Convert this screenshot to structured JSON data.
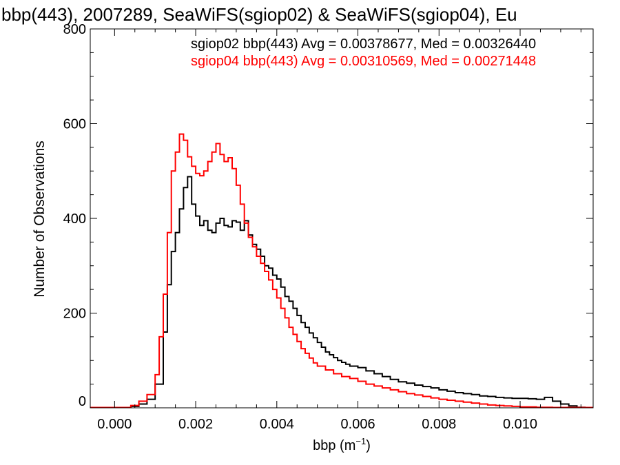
{
  "chart_data": {
    "type": "line",
    "title": "bbp(443), 2007289, SeaWiFS(sgiop02) & SeaWiFS(sgiop04), Eu",
    "xlabel": "bbp (m",
    "xlabel_sup": "−1",
    "xlabel_close": ")",
    "ylabel": "Number of Observations",
    "xlim": [
      -0.0006,
      0.0118
    ],
    "ylim": [
      0,
      800
    ],
    "x_ticks": [
      "0.000",
      "0.002",
      "0.004",
      "0.006",
      "0.008",
      "0.010"
    ],
    "x_tick_values": [
      0.0,
      0.002,
      0.004,
      0.006,
      0.008,
      0.01
    ],
    "y_ticks": [
      "0",
      "200",
      "400",
      "600",
      "800"
    ],
    "y_tick_values": [
      0,
      200,
      400,
      600,
      800
    ],
    "grid": false,
    "legend": [
      {
        "text": "sgiop02 bbp(443) Avg = 0.00378677, Med = 0.00326440",
        "color": "#000000"
      },
      {
        "text": "sgiop04 bbp(443) Avg = 0.00310569, Med = 0.00271448",
        "color": "#ff0000"
      }
    ],
    "series": [
      {
        "color": "#000000",
        "points": [
          [
            -0.0006,
            0
          ],
          [
            0.0,
            0
          ],
          [
            0.0004,
            3
          ],
          [
            0.0006,
            8
          ],
          [
            0.0008,
            18
          ],
          [
            0.001,
            50
          ],
          [
            0.0012,
            160
          ],
          [
            0.0013,
            260
          ],
          [
            0.0014,
            330
          ],
          [
            0.0015,
            370
          ],
          [
            0.0016,
            420
          ],
          [
            0.0017,
            465
          ],
          [
            0.0018,
            488
          ],
          [
            0.0019,
            430
          ],
          [
            0.002,
            405
          ],
          [
            0.0021,
            385
          ],
          [
            0.0022,
            395
          ],
          [
            0.0023,
            375
          ],
          [
            0.0024,
            370
          ],
          [
            0.0025,
            390
          ],
          [
            0.0026,
            400
          ],
          [
            0.0027,
            385
          ],
          [
            0.0028,
            382
          ],
          [
            0.0029,
            395
          ],
          [
            0.003,
            392
          ],
          [
            0.0031,
            375
          ],
          [
            0.0032,
            395
          ],
          [
            0.0033,
            365
          ],
          [
            0.0034,
            345
          ],
          [
            0.0035,
            335
          ],
          [
            0.0036,
            320
          ],
          [
            0.0037,
            300
          ],
          [
            0.0038,
            295
          ],
          [
            0.0039,
            280
          ],
          [
            0.004,
            272
          ],
          [
            0.0041,
            255
          ],
          [
            0.0042,
            235
          ],
          [
            0.0043,
            225
          ],
          [
            0.0044,
            210
          ],
          [
            0.0045,
            195
          ],
          [
            0.0046,
            180
          ],
          [
            0.0047,
            170
          ],
          [
            0.0048,
            158
          ],
          [
            0.0049,
            148
          ],
          [
            0.005,
            138
          ],
          [
            0.0051,
            128
          ],
          [
            0.0052,
            118
          ],
          [
            0.0053,
            112
          ],
          [
            0.0054,
            106
          ],
          [
            0.0055,
            100
          ],
          [
            0.0056,
            96
          ],
          [
            0.0057,
            92
          ],
          [
            0.0058,
            88
          ],
          [
            0.006,
            85
          ],
          [
            0.0062,
            78
          ],
          [
            0.0064,
            72
          ],
          [
            0.0066,
            66
          ],
          [
            0.0068,
            60
          ],
          [
            0.007,
            55
          ],
          [
            0.0072,
            52
          ],
          [
            0.0074,
            48
          ],
          [
            0.0076,
            45
          ],
          [
            0.0078,
            42
          ],
          [
            0.008,
            38
          ],
          [
            0.0082,
            35
          ],
          [
            0.0084,
            32
          ],
          [
            0.0086,
            30
          ],
          [
            0.0088,
            28
          ],
          [
            0.009,
            25
          ],
          [
            0.0092,
            24
          ],
          [
            0.0094,
            22
          ],
          [
            0.0096,
            21
          ],
          [
            0.0098,
            20
          ],
          [
            0.01,
            20
          ],
          [
            0.0102,
            19
          ],
          [
            0.0104,
            18
          ],
          [
            0.0106,
            22
          ],
          [
            0.0108,
            14
          ],
          [
            0.011,
            8
          ],
          [
            0.0112,
            4
          ],
          [
            0.0114,
            1
          ],
          [
            0.0116,
            0
          ],
          [
            0.0118,
            0
          ]
        ]
      },
      {
        "color": "#ff0000",
        "points": [
          [
            -0.0006,
            0
          ],
          [
            0.0,
            0
          ],
          [
            0.0004,
            5
          ],
          [
            0.0006,
            14
          ],
          [
            0.0008,
            28
          ],
          [
            0.001,
            70
          ],
          [
            0.0011,
            150
          ],
          [
            0.0012,
            240
          ],
          [
            0.0013,
            370
          ],
          [
            0.0014,
            500
          ],
          [
            0.0015,
            540
          ],
          [
            0.0016,
            578
          ],
          [
            0.0017,
            565
          ],
          [
            0.0018,
            530
          ],
          [
            0.0019,
            510
          ],
          [
            0.002,
            495
          ],
          [
            0.0021,
            490
          ],
          [
            0.0022,
            500
          ],
          [
            0.0023,
            520
          ],
          [
            0.0024,
            540
          ],
          [
            0.0025,
            558
          ],
          [
            0.0026,
            535
          ],
          [
            0.0027,
            520
          ],
          [
            0.0028,
            528
          ],
          [
            0.0029,
            505
          ],
          [
            0.003,
            470
          ],
          [
            0.0031,
            430
          ],
          [
            0.0032,
            390
          ],
          [
            0.0033,
            360
          ],
          [
            0.0034,
            340
          ],
          [
            0.0035,
            320
          ],
          [
            0.0036,
            305
          ],
          [
            0.0037,
            288
          ],
          [
            0.0038,
            270
          ],
          [
            0.0039,
            250
          ],
          [
            0.004,
            232
          ],
          [
            0.0041,
            210
          ],
          [
            0.0042,
            190
          ],
          [
            0.0043,
            170
          ],
          [
            0.0044,
            155
          ],
          [
            0.0045,
            140
          ],
          [
            0.0046,
            125
          ],
          [
            0.0047,
            115
          ],
          [
            0.0048,
            105
          ],
          [
            0.0049,
            95
          ],
          [
            0.005,
            88
          ],
          [
            0.0052,
            80
          ],
          [
            0.0054,
            72
          ],
          [
            0.0056,
            66
          ],
          [
            0.0058,
            62
          ],
          [
            0.006,
            56
          ],
          [
            0.0062,
            50
          ],
          [
            0.0064,
            46
          ],
          [
            0.0066,
            42
          ],
          [
            0.0068,
            38
          ],
          [
            0.007,
            34
          ],
          [
            0.0072,
            30
          ],
          [
            0.0074,
            27
          ],
          [
            0.0076,
            24
          ],
          [
            0.0078,
            21
          ],
          [
            0.008,
            18
          ],
          [
            0.0082,
            16
          ],
          [
            0.0084,
            14
          ],
          [
            0.0086,
            12
          ],
          [
            0.0088,
            10
          ],
          [
            0.009,
            8
          ],
          [
            0.0092,
            6
          ],
          [
            0.0094,
            5
          ],
          [
            0.0096,
            4
          ],
          [
            0.0098,
            3
          ],
          [
            0.01,
            2
          ],
          [
            0.0102,
            2
          ],
          [
            0.0104,
            1
          ],
          [
            0.0106,
            1
          ],
          [
            0.0108,
            0
          ],
          [
            0.0118,
            0
          ]
        ]
      }
    ]
  }
}
